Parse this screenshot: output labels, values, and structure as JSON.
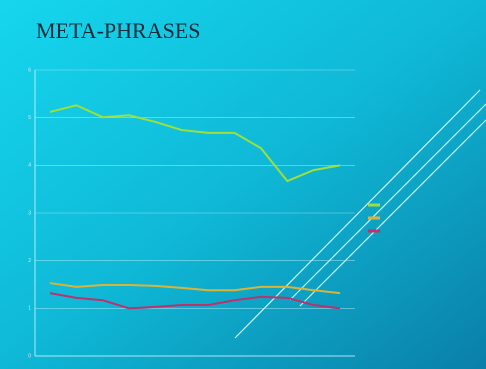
{
  "chart_data": {
    "type": "line",
    "title": "META-PHRASES",
    "categories": [
      null,
      null,
      null,
      null,
      null,
      null,
      null,
      null,
      null,
      null,
      null,
      null
    ],
    "series": [
      {
        "color": "#9ee03a",
        "values": [
          5.12,
          5.26,
          5.01,
          5.05,
          4.91,
          4.74,
          4.68,
          4.68,
          4.36,
          3.67,
          3.9,
          4.0
        ]
      },
      {
        "color": "#d9b43a",
        "values": [
          1.53,
          1.45,
          1.49,
          1.49,
          1.47,
          1.43,
          1.38,
          1.38,
          1.45,
          1.45,
          1.38,
          1.32
        ]
      },
      {
        "color": "#c0306a",
        "values": [
          1.32,
          1.22,
          1.17,
          1.0,
          1.03,
          1.07,
          1.07,
          1.17,
          1.24,
          1.22,
          1.07,
          1.0
        ]
      }
    ],
    "ylim": [
      0,
      6
    ],
    "yticks": [
      0,
      1,
      2,
      3,
      4,
      5,
      6
    ],
    "grid": true
  }
}
